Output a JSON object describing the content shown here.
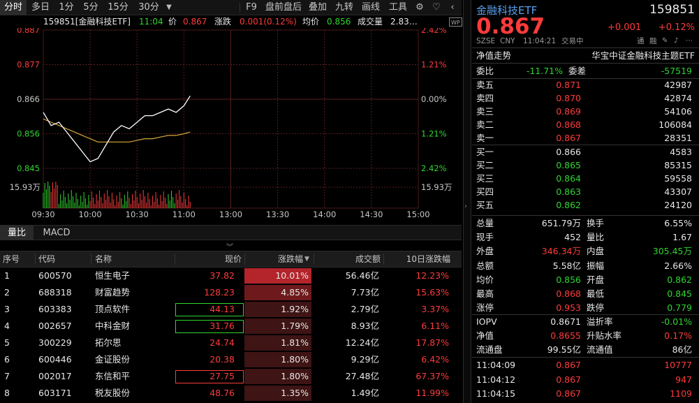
{
  "toolbar": {
    "tabs": [
      "分时",
      "多日",
      "1分",
      "5分",
      "15分",
      "30分"
    ],
    "active_tab": "分时",
    "dropdown_icon": "chevron-down-icon",
    "right_items": [
      "F9",
      "盘前盘后",
      "叠加",
      "九转",
      "画线",
      "工具"
    ],
    "icons": [
      "gear-icon",
      "heart-icon",
      "chevron-left-icon"
    ]
  },
  "info": {
    "code_name": "159851[金融科技ETF]",
    "time": "11:04",
    "price_label": "价",
    "price": "0.867",
    "change_label": "涨跌",
    "change": "0.001(0.12%)",
    "avg_label": "均价",
    "avg": "0.856",
    "volume_label": "成交量",
    "volume": "2.83…",
    "wp_badge": "WP"
  },
  "chart": {
    "y_left": [
      "0.887",
      "0.877",
      "0.866",
      "0.856",
      "0.845"
    ],
    "y_right": [
      "2.42%",
      "1.21%",
      "0.00%",
      "1.21%",
      "2.42%"
    ],
    "vol_label_left": "15.93万",
    "vol_label_right": "15.93万",
    "x_labels": [
      "09:30",
      "10:00",
      "10:30",
      "11:00",
      "13:00",
      "13:30",
      "14:00",
      "14:30",
      "15:00"
    ],
    "colors": {
      "price_line": "#ffffff",
      "avg_line": "#d8a83a",
      "up": "#ff3b3b",
      "down": "#2fd62f",
      "grid": "#5a1f1f"
    }
  },
  "chart_data": {
    "type": "line",
    "ylim": [
      0.845,
      0.887
    ],
    "x": [
      "09:30",
      "09:35",
      "09:40",
      "09:45",
      "09:50",
      "09:55",
      "10:00",
      "10:05",
      "10:10",
      "10:15",
      "10:20",
      "10:25",
      "10:30",
      "10:35",
      "10:40",
      "10:45",
      "10:50",
      "10:55",
      "11:00",
      "11:04"
    ],
    "series": [
      {
        "values": [
          0.862,
          0.858,
          0.859,
          0.856,
          0.853,
          0.85,
          0.847,
          0.848,
          0.852,
          0.856,
          0.858,
          0.857,
          0.859,
          0.861,
          0.861,
          0.862,
          0.863,
          0.862,
          0.864,
          0.867
        ]
      },
      {
        "values": [
          0.86,
          0.859,
          0.858,
          0.857,
          0.856,
          0.855,
          0.854,
          0.853,
          0.853,
          0.853,
          0.853,
          0.853,
          0.8535,
          0.854,
          0.854,
          0.8545,
          0.855,
          0.855,
          0.8555,
          0.856
        ]
      }
    ]
  },
  "subtabs": [
    "量比",
    "MACD"
  ],
  "table": {
    "headers": [
      "序号",
      "代码",
      "名称",
      "现价",
      "涨跌幅",
      "成交额",
      "10日涨跌幅"
    ],
    "sort_icon": "sort-desc-icon",
    "rows": [
      {
        "no": "1",
        "code": "600570",
        "name": "恒生电子",
        "price": "37.82",
        "chg": "10.01%",
        "amount": "56.46亿",
        "chg10": "12.23%",
        "box": "none",
        "hl": "strong"
      },
      {
        "no": "2",
        "code": "688318",
        "name": "财富趋势",
        "price": "128.23",
        "chg": "4.85%",
        "amount": "7.73亿",
        "chg10": "15.63%",
        "box": "none",
        "hl": "medium"
      },
      {
        "no": "3",
        "code": "603383",
        "name": "顶点软件",
        "price": "44.13",
        "chg": "1.92%",
        "amount": "2.79亿",
        "chg10": "3.37%",
        "box": "green",
        "hl": "light"
      },
      {
        "no": "4",
        "code": "002657",
        "name": "中科金财",
        "price": "31.76",
        "chg": "1.79%",
        "amount": "8.93亿",
        "chg10": "6.11%",
        "box": "green",
        "hl": "light"
      },
      {
        "no": "5",
        "code": "300229",
        "name": "拓尔思",
        "price": "24.74",
        "chg": "1.81%",
        "amount": "12.24亿",
        "chg10": "17.87%",
        "box": "none",
        "hl": "light"
      },
      {
        "no": "6",
        "code": "600446",
        "name": "金证股份",
        "price": "20.38",
        "chg": "1.80%",
        "amount": "9.29亿",
        "chg10": "6.42%",
        "box": "none",
        "hl": "light"
      },
      {
        "no": "7",
        "code": "002017",
        "name": "东信和平",
        "price": "27.75",
        "chg": "1.80%",
        "amount": "27.48亿",
        "chg10": "67.37%",
        "box": "red",
        "hl": "light"
      },
      {
        "no": "8",
        "code": "603171",
        "name": "税友股份",
        "price": "48.76",
        "chg": "1.35%",
        "amount": "1.49亿",
        "chg10": "11.99%",
        "box": "none",
        "hl": "light"
      }
    ]
  },
  "quote": {
    "name": "金融科技ETF",
    "code": "159851",
    "price": "0.867",
    "change": "+0.001",
    "change_pct": "+0.12%",
    "meta": [
      "SZSE",
      "CNY",
      "11:04:21",
      "交易中"
    ],
    "badges": [
      "通",
      "融"
    ],
    "nav_label": "净值走势",
    "fund_name": "华宝中证金融科技主题ETF",
    "weibi_label": "委比",
    "weibi": "-11.71%",
    "weicha_label": "委差",
    "weicha": "-57519",
    "sells": [
      {
        "label": "卖五",
        "price": "0.871",
        "vol": "42987",
        "color": "red"
      },
      {
        "label": "卖四",
        "price": "0.870",
        "vol": "42874",
        "color": "red"
      },
      {
        "label": "卖三",
        "price": "0.869",
        "vol": "54106",
        "color": "red"
      },
      {
        "label": "卖二",
        "price": "0.868",
        "vol": "106084",
        "color": "red"
      },
      {
        "label": "卖一",
        "price": "0.867",
        "vol": "28351",
        "color": "red"
      }
    ],
    "buys": [
      {
        "label": "买一",
        "price": "0.866",
        "vol": "4583",
        "color": "white"
      },
      {
        "label": "买二",
        "price": "0.865",
        "vol": "85315",
        "color": "green"
      },
      {
        "label": "买三",
        "price": "0.864",
        "vol": "59558",
        "color": "green"
      },
      {
        "label": "买四",
        "price": "0.863",
        "vol": "43307",
        "color": "green"
      },
      {
        "label": "买五",
        "price": "0.862",
        "vol": "24120",
        "color": "green"
      }
    ],
    "stats": [
      {
        "l1": "总量",
        "v1": "651.79万",
        "c1": "white",
        "l2": "换手",
        "v2": "6.55%",
        "c2": "white"
      },
      {
        "l1": "现手",
        "v1": "452",
        "c1": "white",
        "l2": "量比",
        "v2": "1.67",
        "c2": "white"
      },
      {
        "l1": "外盘",
        "v1": "346.34万",
        "c1": "red",
        "l2": "内盘",
        "v2": "305.45万",
        "c2": "green"
      },
      {
        "l1": "总额",
        "v1": "5.58亿",
        "c1": "white",
        "l2": "振幅",
        "v2": "2.66%",
        "c2": "white"
      },
      {
        "l1": "均价",
        "v1": "0.856",
        "c1": "green",
        "l2": "开盘",
        "v2": "0.862",
        "c2": "green"
      },
      {
        "l1": "最高",
        "v1": "0.868",
        "c1": "red",
        "l2": "最低",
        "v2": "0.845",
        "c2": "green"
      },
      {
        "l1": "涨停",
        "v1": "0.953",
        "c1": "red",
        "l2": "跌停",
        "v2": "0.779",
        "c2": "green"
      }
    ],
    "stats2": [
      {
        "l1": "IOPV",
        "v1": "0.8671",
        "c1": "white",
        "l2": "溢折率",
        "v2": "-0.01%",
        "c2": "green"
      },
      {
        "l1": "净值",
        "v1": "0.8655",
        "c1": "red",
        "l2": "升贴水率",
        "v2": "0.17%",
        "c2": "red"
      },
      {
        "l1": "流通盘",
        "v1": "99.55亿",
        "c1": "white",
        "l2": "流通值",
        "v2": "86亿",
        "c2": "white"
      }
    ],
    "ticks": [
      {
        "time": "11:04:09",
        "price": "0.867",
        "vol": "10777"
      },
      {
        "time": "11:04:12",
        "price": "0.867",
        "vol": "947"
      },
      {
        "time": "11:04:15",
        "price": "0.867",
        "vol": "1109"
      }
    ]
  }
}
